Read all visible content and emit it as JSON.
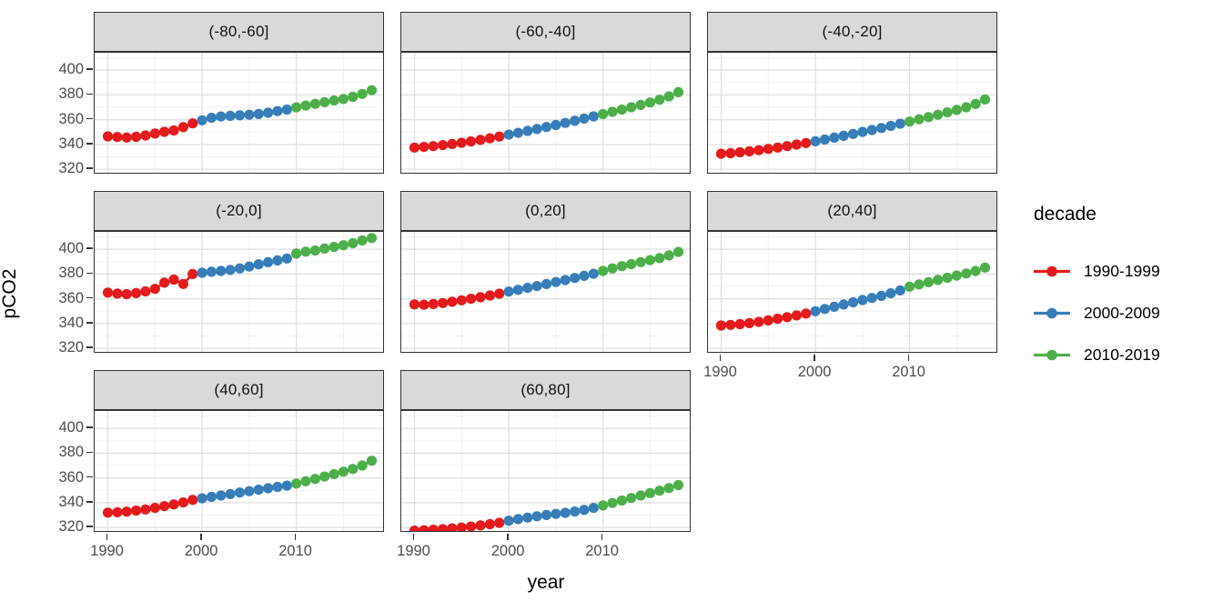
{
  "chart_data": {
    "type": "scatter",
    "description": "Faceted scatter/line plot of ocean pCO2 by year for latitude bands, points colored by decade (ggplot-style facet_wrap, theme_bw)",
    "xlabel": "year",
    "ylabel": "pCO2",
    "legend_position": "right",
    "grid": "on",
    "xlim": [
      1988.6,
      2019.4
    ],
    "ylim": [
      315,
      414
    ],
    "x_ticks": [
      1990,
      2000,
      2010
    ],
    "x_minor_ticks": [
      1995,
      2005,
      2015
    ],
    "y_ticks": [
      320,
      340,
      360,
      380,
      400
    ],
    "y_minor_ticks": [
      330,
      350,
      370,
      390,
      410
    ],
    "years": [
      1990,
      1991,
      1992,
      1993,
      1994,
      1995,
      1996,
      1997,
      1998,
      1999,
      2000,
      2001,
      2002,
      2003,
      2004,
      2005,
      2006,
      2007,
      2008,
      2009,
      2010,
      2011,
      2012,
      2013,
      2014,
      2015,
      2016,
      2017,
      2018
    ],
    "legend": {
      "title": "decade",
      "entries": [
        {
          "label": "1990-1999",
          "color": "#E41A1C"
        },
        {
          "label": "2000-2009",
          "color": "#377EB8"
        },
        {
          "label": "2010-2019",
          "color": "#4DAF4A"
        }
      ]
    },
    "facets": [
      {
        "label": "(-80,-60]",
        "values": [
          346.5,
          346.0,
          345.6,
          346.2,
          347.3,
          348.8,
          350.2,
          351.3,
          354.0,
          357.0,
          359.5,
          361.5,
          362.6,
          363.1,
          363.5,
          364.0,
          364.6,
          365.6,
          366.9,
          368.2,
          369.9,
          371.4,
          372.8,
          374.1,
          375.4,
          376.7,
          378.4,
          380.8,
          383.8
        ]
      },
      {
        "label": "(-60,-40]",
        "values": [
          337.5,
          338.0,
          338.7,
          339.5,
          340.4,
          341.4,
          342.5,
          343.7,
          345.0,
          346.4,
          347.9,
          349.4,
          350.9,
          352.5,
          354.1,
          355.7,
          357.4,
          359.1,
          360.9,
          362.7,
          364.5,
          366.3,
          368.1,
          370.0,
          371.9,
          373.9,
          376.1,
          378.8,
          382.2
        ]
      },
      {
        "label": "(-40,-20]",
        "values": [
          332.5,
          333.0,
          333.7,
          334.5,
          335.4,
          336.4,
          337.5,
          338.7,
          339.9,
          341.2,
          342.6,
          344.0,
          345.5,
          347.0,
          348.5,
          350.1,
          351.7,
          353.3,
          355.0,
          356.7,
          358.5,
          360.3,
          362.1,
          364.0,
          365.9,
          367.9,
          370.0,
          372.7,
          376.3
        ]
      },
      {
        "label": "(-20,0]",
        "values": [
          365.0,
          364.2,
          363.8,
          364.6,
          366.0,
          368.0,
          373.0,
          375.5,
          372.0,
          380.0,
          381.0,
          381.8,
          382.5,
          383.3,
          384.5,
          386.0,
          387.8,
          389.5,
          391.0,
          392.5,
          396.5,
          398.0,
          399.0,
          400.5,
          401.8,
          403.2,
          404.8,
          407.0,
          409.0
        ]
      },
      {
        "label": "(0,20]",
        "values": [
          355.5,
          355.2,
          355.8,
          356.6,
          357.6,
          358.8,
          360.0,
          361.3,
          362.7,
          364.1,
          365.8,
          367.3,
          368.8,
          370.3,
          371.9,
          373.5,
          375.1,
          376.8,
          378.5,
          380.2,
          382.5,
          384.5,
          386.3,
          388.0,
          389.6,
          391.2,
          392.8,
          395.0,
          397.8
        ]
      },
      {
        "label": "(20,40]",
        "values": [
          338.5,
          339.0,
          339.6,
          340.4,
          341.4,
          342.6,
          343.9,
          345.2,
          346.6,
          348.1,
          350.0,
          351.8,
          353.6,
          355.4,
          357.2,
          359.0,
          360.7,
          362.4,
          364.4,
          366.8,
          369.8,
          371.6,
          373.4,
          375.2,
          377.0,
          378.7,
          380.4,
          382.4,
          385.2
        ]
      },
      {
        "label": "(40,60]",
        "values": [
          332.0,
          332.3,
          332.8,
          333.6,
          334.6,
          335.8,
          337.2,
          338.6,
          340.2,
          342.3,
          343.5,
          344.7,
          345.8,
          347.0,
          348.2,
          349.3,
          350.5,
          351.7,
          352.8,
          353.8,
          355.5,
          357.3,
          359.2,
          361.1,
          363.0,
          365.0,
          367.2,
          370.0,
          373.9
        ]
      },
      {
        "label": "(60,80]",
        "values": [
          317.5,
          317.8,
          318.2,
          318.7,
          319.3,
          320.0,
          320.8,
          321.7,
          322.7,
          323.8,
          325.5,
          326.8,
          328.0,
          329.1,
          330.1,
          331.0,
          331.9,
          332.9,
          334.2,
          335.8,
          337.8,
          339.8,
          341.8,
          343.8,
          345.8,
          347.8,
          349.7,
          351.8,
          354.2
        ]
      }
    ]
  }
}
